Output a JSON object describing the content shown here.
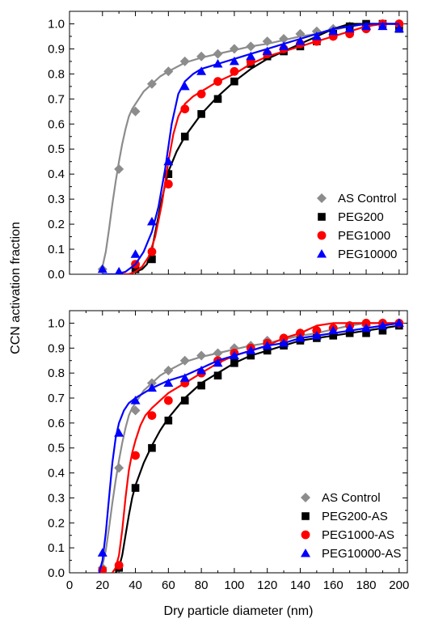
{
  "figure": {
    "ylabel": "CCN activation fraction",
    "xlabel": "Dry particle diameter (nm)"
  },
  "chart_data": [
    {
      "type": "scatter",
      "panel": "top",
      "xlim": [
        0,
        205
      ],
      "ylim": [
        0,
        1.05
      ],
      "xticks": [
        20,
        40,
        60,
        80,
        100,
        120,
        140,
        160,
        180,
        200
      ],
      "yticks": [
        0.0,
        0.1,
        0.2,
        0.3,
        0.4,
        0.5,
        0.6,
        0.7,
        0.8,
        0.9,
        1.0
      ],
      "ytick_labels": [
        "0.0",
        "0.1",
        "0.2",
        "0.3",
        "0.4",
        "0.5",
        "0.6",
        "0.7",
        "0.8",
        "0.9",
        "1.0"
      ],
      "legend_position": "bottom-right",
      "series": [
        {
          "name": "AS Control",
          "marker": "diamond",
          "color": "#8c8c8c",
          "x": [
            20,
            30,
            40,
            50,
            60,
            70,
            80,
            90,
            100,
            110,
            120,
            130,
            140,
            150,
            160,
            170,
            180,
            190,
            200
          ],
          "y": [
            0.02,
            0.42,
            0.65,
            0.76,
            0.81,
            0.85,
            0.87,
            0.88,
            0.9,
            0.91,
            0.93,
            0.94,
            0.96,
            0.97,
            0.98,
            0.99,
            0.99,
            1.0,
            1.0
          ],
          "fit_x": [
            20,
            22,
            24,
            26,
            28,
            30,
            32,
            34,
            36,
            38,
            40,
            45,
            50,
            55,
            60,
            70,
            80,
            90,
            100,
            110,
            120,
            130,
            140,
            150,
            160,
            170,
            180,
            190,
            200
          ],
          "fit_y": [
            0.03,
            0.09,
            0.18,
            0.28,
            0.37,
            0.45,
            0.52,
            0.58,
            0.63,
            0.66,
            0.68,
            0.73,
            0.76,
            0.79,
            0.81,
            0.845,
            0.865,
            0.88,
            0.895,
            0.91,
            0.92,
            0.935,
            0.95,
            0.96,
            0.975,
            0.99,
            1.0,
            1.0,
            1.0
          ]
        },
        {
          "name": "PEG200",
          "marker": "square",
          "color": "#000000",
          "x": [
            40,
            50,
            60,
            70,
            80,
            90,
            100,
            110,
            120,
            130,
            140,
            150,
            160,
            170,
            180,
            190,
            200
          ],
          "y": [
            0.02,
            0.06,
            0.4,
            0.55,
            0.64,
            0.7,
            0.77,
            0.84,
            0.87,
            0.89,
            0.91,
            0.93,
            0.96,
            0.99,
            1.0,
            1.0,
            0.98
          ],
          "fit_x": [
            30,
            36,
            40,
            44,
            47,
            50,
            53,
            56,
            60,
            65,
            70,
            80,
            90,
            100,
            110,
            120,
            130,
            140,
            150,
            160,
            170,
            180,
            190,
            200
          ],
          "fit_y": [
            0.0,
            0.0,
            0.01,
            0.02,
            0.04,
            0.1,
            0.2,
            0.3,
            0.41,
            0.49,
            0.55,
            0.64,
            0.71,
            0.77,
            0.82,
            0.86,
            0.89,
            0.92,
            0.95,
            0.98,
            1.0,
            1.0,
            1.0,
            1.0
          ]
        },
        {
          "name": "PEG1000",
          "marker": "circle",
          "color": "#ff0000",
          "x": [
            40,
            50,
            60,
            70,
            80,
            90,
            100,
            110,
            120,
            130,
            140,
            150,
            160,
            170,
            180,
            190,
            200
          ],
          "y": [
            0.04,
            0.09,
            0.36,
            0.66,
            0.72,
            0.77,
            0.81,
            0.85,
            0.88,
            0.9,
            0.92,
            0.93,
            0.95,
            0.96,
            0.98,
            1.0,
            1.0
          ],
          "fit_x": [
            30,
            36,
            40,
            44,
            48,
            52,
            56,
            60,
            63,
            66,
            70,
            75,
            80,
            90,
            100,
            110,
            120,
            130,
            140,
            150,
            160,
            170,
            180,
            190,
            200
          ],
          "fit_y": [
            0.0,
            0.0,
            0.01,
            0.03,
            0.07,
            0.15,
            0.28,
            0.45,
            0.56,
            0.63,
            0.68,
            0.71,
            0.73,
            0.77,
            0.8,
            0.84,
            0.87,
            0.89,
            0.91,
            0.93,
            0.95,
            0.97,
            0.99,
            1.0,
            1.0
          ]
        },
        {
          "name": "PEG10000",
          "marker": "triangle",
          "color": "#0000ff",
          "x": [
            20,
            30,
            40,
            50,
            60,
            70,
            80,
            90,
            100,
            110,
            120,
            130,
            140,
            150,
            160,
            170,
            180,
            190,
            200
          ],
          "y": [
            0.02,
            0.01,
            0.08,
            0.21,
            0.45,
            0.75,
            0.81,
            0.84,
            0.85,
            0.87,
            0.89,
            0.91,
            0.93,
            0.95,
            0.97,
            0.98,
            0.99,
            0.99,
            0.98
          ],
          "fit_x": [
            20,
            28,
            34,
            40,
            45,
            50,
            54,
            58,
            62,
            66,
            70,
            75,
            80,
            90,
            100,
            110,
            120,
            130,
            140,
            150,
            160,
            170,
            180,
            190,
            200
          ],
          "fit_y": [
            0.0,
            0.0,
            0.01,
            0.04,
            0.09,
            0.17,
            0.27,
            0.42,
            0.6,
            0.72,
            0.77,
            0.8,
            0.82,
            0.84,
            0.86,
            0.88,
            0.9,
            0.92,
            0.94,
            0.96,
            0.98,
            0.99,
            1.0,
            1.0,
            1.0
          ]
        }
      ]
    },
    {
      "type": "scatter",
      "panel": "bottom",
      "xlim": [
        0,
        205
      ],
      "ylim": [
        0,
        1.05
      ],
      "xticks": [
        0,
        20,
        40,
        60,
        80,
        100,
        120,
        140,
        160,
        180,
        200
      ],
      "xtick_labels": [
        "0",
        "20",
        "40",
        "60",
        "80",
        "100",
        "120",
        "140",
        "160",
        "180",
        "200"
      ],
      "yticks": [
        0.0,
        0.1,
        0.2,
        0.3,
        0.4,
        0.5,
        0.6,
        0.7,
        0.8,
        0.9,
        1.0
      ],
      "ytick_labels": [
        "0.0",
        "0.1",
        "0.2",
        "0.3",
        "0.4",
        "0.5",
        "0.6",
        "0.7",
        "0.8",
        "0.9",
        "1.0"
      ],
      "legend_position": "bottom-right",
      "series": [
        {
          "name": "AS Control",
          "marker": "diamond",
          "color": "#8c8c8c",
          "x": [
            20,
            30,
            40,
            50,
            60,
            70,
            80,
            90,
            100,
            110,
            120,
            130,
            140,
            150,
            160,
            170,
            180,
            190,
            200
          ],
          "y": [
            0.02,
            0.42,
            0.65,
            0.76,
            0.81,
            0.85,
            0.87,
            0.88,
            0.9,
            0.91,
            0.93,
            0.94,
            0.96,
            0.97,
            0.98,
            0.99,
            0.99,
            1.0,
            1.0
          ],
          "fit_x": [
            20,
            22,
            24,
            26,
            28,
            30,
            32,
            34,
            36,
            38,
            40,
            45,
            50,
            55,
            60,
            70,
            80,
            90,
            100,
            110,
            120,
            130,
            140,
            150,
            160,
            170,
            180,
            190,
            200
          ],
          "fit_y": [
            0.03,
            0.09,
            0.18,
            0.28,
            0.37,
            0.45,
            0.52,
            0.58,
            0.63,
            0.66,
            0.68,
            0.73,
            0.76,
            0.79,
            0.81,
            0.845,
            0.865,
            0.88,
            0.895,
            0.91,
            0.92,
            0.935,
            0.95,
            0.96,
            0.975,
            0.99,
            1.0,
            1.0,
            1.0
          ]
        },
        {
          "name": "PEG200-AS",
          "marker": "square",
          "color": "#000000",
          "x": [
            30,
            40,
            50,
            60,
            70,
            80,
            90,
            100,
            110,
            120,
            130,
            140,
            150,
            160,
            170,
            180,
            190,
            200
          ],
          "y": [
            0.02,
            0.34,
            0.5,
            0.61,
            0.69,
            0.75,
            0.79,
            0.84,
            0.87,
            0.89,
            0.91,
            0.93,
            0.94,
            0.95,
            0.96,
            0.96,
            0.97,
            0.99
          ],
          "fit_x": [
            28,
            30,
            32,
            34,
            36,
            38,
            40,
            45,
            50,
            55,
            60,
            70,
            80,
            90,
            100,
            110,
            120,
            130,
            140,
            150,
            160,
            170,
            180,
            190,
            200
          ],
          "fit_y": [
            0.0,
            0.02,
            0.07,
            0.15,
            0.23,
            0.3,
            0.35,
            0.44,
            0.51,
            0.57,
            0.62,
            0.7,
            0.76,
            0.8,
            0.84,
            0.87,
            0.89,
            0.91,
            0.93,
            0.94,
            0.95,
            0.96,
            0.97,
            0.98,
            0.99
          ]
        },
        {
          "name": "PEG1000-AS",
          "marker": "circle",
          "color": "#ff0000",
          "x": [
            20,
            30,
            40,
            50,
            60,
            70,
            80,
            90,
            100,
            110,
            120,
            130,
            140,
            150,
            160,
            170,
            180,
            190,
            200
          ],
          "y": [
            0.01,
            0.03,
            0.47,
            0.63,
            0.69,
            0.76,
            0.8,
            0.85,
            0.88,
            0.9,
            0.92,
            0.94,
            0.96,
            0.97,
            0.98,
            0.99,
            1.0,
            1.0,
            1.0
          ],
          "fit_x": [
            26,
            28,
            30,
            32,
            34,
            36,
            38,
            40,
            43,
            46,
            50,
            55,
            60,
            70,
            80,
            90,
            100,
            110,
            120,
            130,
            140,
            150,
            160,
            170,
            180,
            190,
            200
          ],
          "fit_y": [
            0.0,
            0.02,
            0.07,
            0.17,
            0.3,
            0.41,
            0.48,
            0.53,
            0.59,
            0.63,
            0.66,
            0.69,
            0.72,
            0.76,
            0.8,
            0.84,
            0.87,
            0.89,
            0.91,
            0.94,
            0.96,
            0.99,
            1.0,
            1.0,
            1.0,
            1.0,
            1.0
          ]
        },
        {
          "name": "PEG10000-AS",
          "marker": "triangle",
          "color": "#0000ff",
          "x": [
            20,
            30,
            40,
            50,
            60,
            70,
            80,
            90,
            100,
            110,
            120,
            130,
            140,
            150,
            160,
            170,
            180,
            190,
            200
          ],
          "y": [
            0.08,
            0.56,
            0.69,
            0.74,
            0.76,
            0.78,
            0.81,
            0.84,
            0.87,
            0.89,
            0.91,
            0.92,
            0.94,
            0.95,
            0.97,
            0.98,
            0.98,
            0.99,
            1.0
          ],
          "fit_x": [
            18,
            20,
            22,
            24,
            26,
            28,
            30,
            33,
            36,
            40,
            45,
            50,
            55,
            60,
            70,
            80,
            90,
            100,
            110,
            120,
            130,
            140,
            150,
            160,
            170,
            180,
            190,
            200
          ],
          "fit_y": [
            0.0,
            0.05,
            0.16,
            0.3,
            0.44,
            0.54,
            0.6,
            0.65,
            0.68,
            0.7,
            0.72,
            0.74,
            0.755,
            0.77,
            0.79,
            0.82,
            0.85,
            0.87,
            0.89,
            0.91,
            0.92,
            0.94,
            0.95,
            0.96,
            0.97,
            0.98,
            0.99,
            1.0
          ]
        }
      ]
    }
  ]
}
